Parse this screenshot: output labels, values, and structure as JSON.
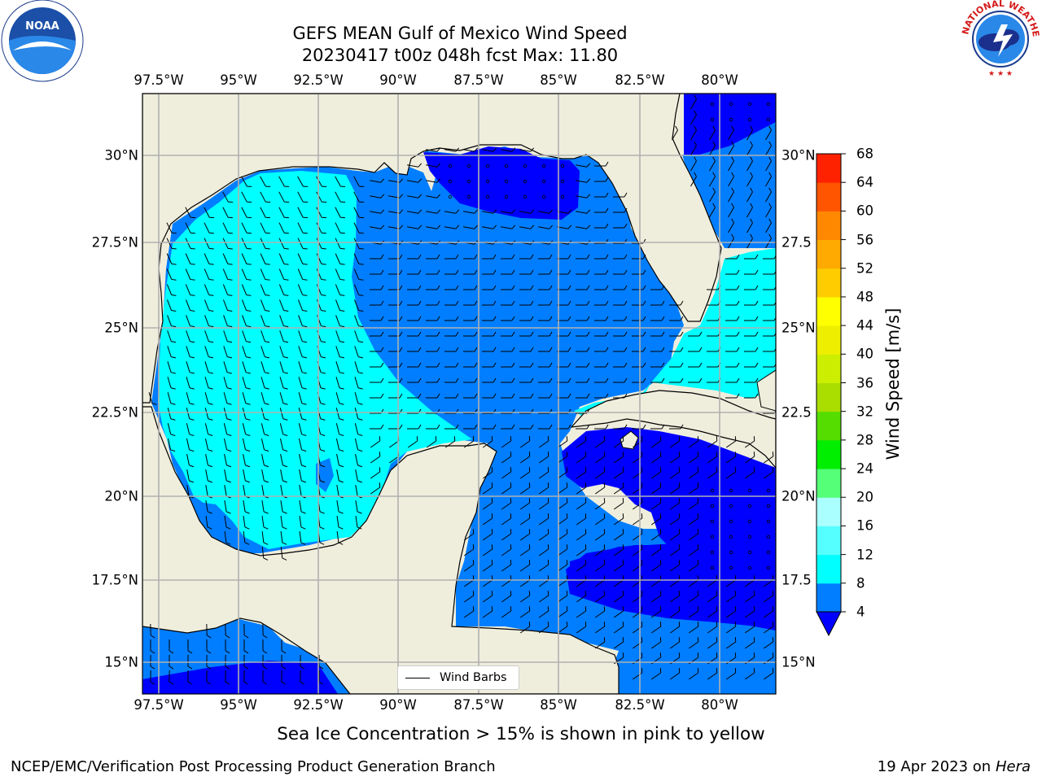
{
  "title": {
    "line1": "GEFS MEAN Gulf of Mexico Wind Speed",
    "line2": "20230417 t00z 048h fcst   Max: 11.80"
  },
  "axes": {
    "lon_labels": [
      "97.5°W",
      "95°W",
      "92.5°W",
      "90°W",
      "87.5°W",
      "85°W",
      "82.5°W",
      "80°W"
    ],
    "lat_labels_left": [
      "30°N",
      "27.5°N",
      "25°N",
      "22.5°N",
      "20°N",
      "17.5°N",
      "15°N"
    ],
    "lat_labels_right": [
      "30°N",
      "27.5",
      "25°N",
      "22.5",
      "20°N",
      "17.5",
      "15°N"
    ]
  },
  "legend": {
    "label": "Wind Barbs"
  },
  "colorbar": {
    "label": "Wind Speed [m/s]",
    "ticks": [
      "68",
      "64",
      "60",
      "56",
      "52",
      "48",
      "44",
      "40",
      "36",
      "32",
      "28",
      "24",
      "20",
      "16",
      "12",
      "8",
      "4"
    ],
    "colors": [
      "#0000ff",
      "#007eff",
      "#00ffff",
      "#55ffff",
      "#aaffff",
      "#55ff77",
      "#00ee00",
      "#55dd00",
      "#aadd00",
      "#ccee00",
      "#eeee00",
      "#ffff00",
      "#ffcc00",
      "#ffaa00",
      "#ff8800",
      "#ff5500",
      "#ff2200",
      "#ff0000"
    ]
  },
  "subtitle": "Sea Ice Concentration > 15% is shown in pink to yellow",
  "footer": {
    "left": "NCEP/EMC/Verification Post Processing Product Generation Branch",
    "right_date": "19 Apr 2023 on ",
    "right_host": "Hera"
  },
  "logos": {
    "noaa": "NOAA",
    "nws_ring": "NATIONAL WEATHER SERVICE"
  },
  "colors": {
    "land": "#efeedd",
    "speed_4_8": "#007eff",
    "speed_below_4": "#0000ff",
    "speed_8_12": "#00ffff",
    "grid": "#b0b0b0"
  }
}
